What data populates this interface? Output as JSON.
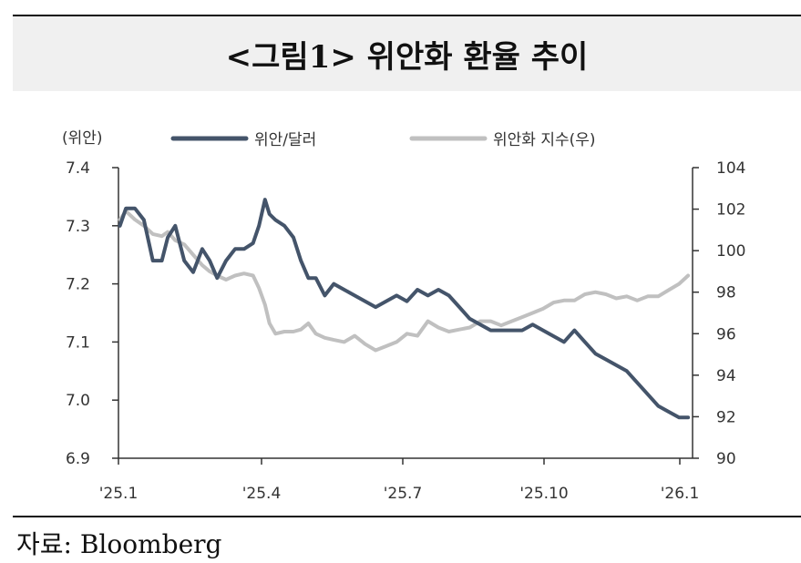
{
  "header": {
    "title": "<그림1> 위안화 환율 추이"
  },
  "footer": {
    "source": "자료: Bloomberg"
  },
  "colors": {
    "cny_line": "#44546a",
    "index_line": "#c0c0c0",
    "title_band": "#f0f0f0"
  },
  "chart_data": {
    "type": "line",
    "title": "<그림1> 위안화 환율 추이",
    "left_axis": {
      "unit": "(위안)",
      "ylim": [
        6.9,
        7.4
      ],
      "ticks": [
        "7.4",
        "7.3",
        "7.2",
        "7.1",
        "7.0",
        "6.9"
      ]
    },
    "right_axis": {
      "ylim": [
        90,
        104
      ],
      "ticks": [
        "104",
        "102",
        "100",
        "98",
        "96",
        "94",
        "92",
        "90"
      ]
    },
    "x_ticks": [
      "'25.1",
      "'25.4",
      "'25.7",
      "'25.10",
      "'26.1"
    ],
    "x_range": [
      "2025-01-01",
      "2026-01-20"
    ],
    "grid": false,
    "legend_position": "top",
    "series": [
      {
        "name": "위안/달러",
        "axis": "left",
        "x": [
          "2025-01-02",
          "2025-01-06",
          "2025-01-12",
          "2025-01-18",
          "2025-01-24",
          "2025-01-30",
          "2025-02-03",
          "2025-02-08",
          "2025-02-14",
          "2025-02-20",
          "2025-02-26",
          "2025-03-03",
          "2025-03-08",
          "2025-03-14",
          "2025-03-20",
          "2025-03-26",
          "2025-04-01",
          "2025-04-05",
          "2025-04-09",
          "2025-04-12",
          "2025-04-16",
          "2025-04-22",
          "2025-04-28",
          "2025-05-03",
          "2025-05-08",
          "2025-05-13",
          "2025-05-19",
          "2025-05-25",
          "2025-06-01",
          "2025-06-08",
          "2025-06-15",
          "2025-06-22",
          "2025-06-29",
          "2025-07-06",
          "2025-07-13",
          "2025-07-20",
          "2025-07-27",
          "2025-08-03",
          "2025-08-10",
          "2025-08-17",
          "2025-08-24",
          "2025-08-31",
          "2025-09-07",
          "2025-09-14",
          "2025-09-21",
          "2025-09-28",
          "2025-10-05",
          "2025-10-12",
          "2025-10-19",
          "2025-10-26",
          "2025-11-02",
          "2025-11-09",
          "2025-11-16",
          "2025-11-23",
          "2025-11-30",
          "2025-12-07",
          "2025-12-14",
          "2025-12-21",
          "2025-12-28",
          "2026-01-04",
          "2026-01-11",
          "2026-01-17"
        ],
        "values": [
          7.3,
          7.33,
          7.33,
          7.31,
          7.24,
          7.24,
          7.28,
          7.3,
          7.24,
          7.22,
          7.26,
          7.24,
          7.21,
          7.24,
          7.26,
          7.26,
          7.27,
          7.3,
          7.345,
          7.32,
          7.31,
          7.3,
          7.28,
          7.24,
          7.21,
          7.21,
          7.18,
          7.2,
          7.19,
          7.18,
          7.17,
          7.16,
          7.17,
          7.18,
          7.17,
          7.19,
          7.18,
          7.19,
          7.18,
          7.16,
          7.14,
          7.13,
          7.12,
          7.12,
          7.12,
          7.12,
          7.13,
          7.12,
          7.11,
          7.1,
          7.12,
          7.1,
          7.08,
          7.07,
          7.06,
          7.05,
          7.03,
          7.01,
          6.99,
          6.98,
          6.97,
          6.97
        ]
      },
      {
        "name": "위안화 지수(우)",
        "axis": "right",
        "x": [
          "2025-01-02",
          "2025-01-06",
          "2025-01-12",
          "2025-01-18",
          "2025-01-24",
          "2025-01-30",
          "2025-02-03",
          "2025-02-08",
          "2025-02-14",
          "2025-02-20",
          "2025-02-26",
          "2025-03-03",
          "2025-03-08",
          "2025-03-14",
          "2025-03-20",
          "2025-03-26",
          "2025-04-01",
          "2025-04-05",
          "2025-04-09",
          "2025-04-12",
          "2025-04-16",
          "2025-04-22",
          "2025-04-28",
          "2025-05-03",
          "2025-05-08",
          "2025-05-13",
          "2025-05-19",
          "2025-05-25",
          "2025-06-01",
          "2025-06-08",
          "2025-06-15",
          "2025-06-22",
          "2025-06-29",
          "2025-07-06",
          "2025-07-13",
          "2025-07-20",
          "2025-07-27",
          "2025-08-03",
          "2025-08-10",
          "2025-08-17",
          "2025-08-24",
          "2025-08-31",
          "2025-09-07",
          "2025-09-14",
          "2025-09-21",
          "2025-09-28",
          "2025-10-05",
          "2025-10-12",
          "2025-10-19",
          "2025-10-26",
          "2025-11-02",
          "2025-11-09",
          "2025-11-16",
          "2025-11-23",
          "2025-11-30",
          "2025-12-07",
          "2025-12-14",
          "2025-12-21",
          "2025-12-28",
          "2026-01-04",
          "2026-01-11",
          "2026-01-17"
        ],
        "values": [
          101.5,
          101.9,
          101.5,
          101.2,
          100.8,
          100.7,
          100.9,
          100.5,
          100.3,
          99.8,
          99.3,
          99.0,
          98.8,
          98.6,
          98.8,
          98.9,
          98.8,
          98.2,
          97.4,
          96.5,
          96.0,
          96.1,
          96.1,
          96.2,
          96.5,
          96.0,
          95.8,
          95.7,
          95.6,
          95.9,
          95.5,
          95.2,
          95.4,
          95.6,
          96.0,
          95.9,
          96.6,
          96.3,
          96.1,
          96.2,
          96.3,
          96.6,
          96.6,
          96.4,
          96.6,
          96.8,
          97.0,
          97.2,
          97.5,
          97.6,
          97.6,
          97.9,
          98.0,
          97.9,
          97.7,
          97.8,
          97.6,
          97.8,
          97.8,
          98.1,
          98.4,
          98.8
        ]
      }
    ]
  }
}
